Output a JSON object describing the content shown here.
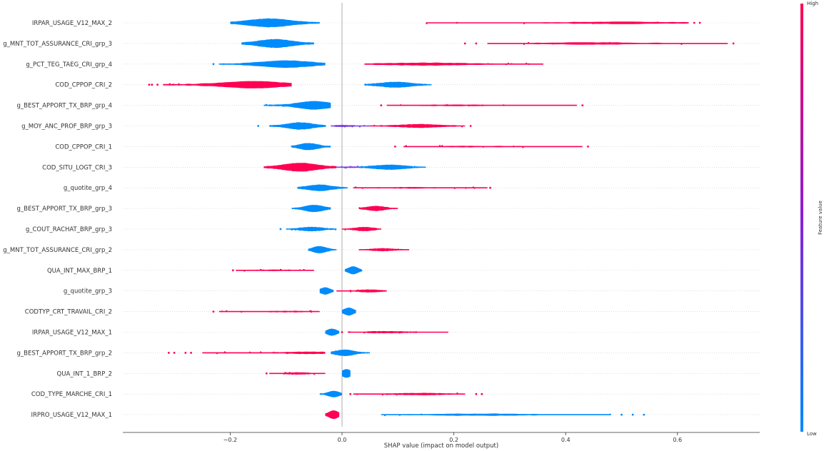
{
  "chart_data": {
    "type": "scatter",
    "subtype": "shap-beeswarm",
    "xlabel": "SHAP value (impact on model output)",
    "xlim": [
      -0.4,
      0.75
    ],
    "x_ticks": [
      -0.2,
      0.0,
      0.2,
      0.4,
      0.6
    ],
    "x_tick_labels": [
      "−0.2",
      "0.0",
      "0.2",
      "0.4",
      "0.6"
    ],
    "colorbar": {
      "title": "Feature value",
      "high_label": "High",
      "low_label": "Low",
      "high_color": "#ff0052",
      "low_color": "#008bfb"
    },
    "zero_line": true,
    "features": [
      {
        "name": "IRPAR_USAGE_V12_MAX_2",
        "segments": [
          {
            "color": "low",
            "range": [
              -0.2,
              -0.04
            ],
            "center": -0.13,
            "thickness": 12
          },
          {
            "color": "high",
            "range": [
              0.15,
              0.62
            ],
            "center": 0.5,
            "thickness": 3
          }
        ],
        "outliers": [
          {
            "x": 0.63,
            "color": "high"
          },
          {
            "x": 0.64,
            "color": "high"
          }
        ]
      },
      {
        "name": "g_MNT_TOT_ASSURANCE_CRI_grp_3",
        "segments": [
          {
            "color": "low",
            "range": [
              -0.18,
              -0.05
            ],
            "center": -0.12,
            "thickness": 12
          },
          {
            "color": "high",
            "range": [
              0.26,
              0.69
            ],
            "center": 0.45,
            "thickness": 3
          }
        ],
        "outliers": [
          {
            "x": 0.22,
            "color": "high"
          },
          {
            "x": 0.24,
            "color": "high"
          },
          {
            "x": 0.7,
            "color": "high"
          }
        ]
      },
      {
        "name": "g_PCT_TEG_TAEG_CRI_grp_4",
        "segments": [
          {
            "color": "low",
            "range": [
              -0.22,
              -0.03
            ],
            "center": -0.1,
            "thickness": 10
          },
          {
            "color": "high",
            "range": [
              0.04,
              0.36
            ],
            "center": 0.15,
            "thickness": 4
          }
        ],
        "outliers": [
          {
            "x": -0.23,
            "color": "low"
          }
        ]
      },
      {
        "name": "COD_CPPOP_CRI_2",
        "segments": [
          {
            "color": "high",
            "range": [
              -0.32,
              -0.09
            ],
            "center": -0.16,
            "thickness": 10
          },
          {
            "color": "low",
            "range": [
              0.04,
              0.16
            ],
            "center": 0.095,
            "thickness": 8
          }
        ],
        "outliers": [
          {
            "x": -0.345,
            "color": "high"
          },
          {
            "x": -0.34,
            "color": "high"
          },
          {
            "x": -0.33,
            "color": "high"
          }
        ]
      },
      {
        "name": "g_BEST_APPORT_TX_BRP_grp_4",
        "segments": [
          {
            "color": "low",
            "range": [
              -0.14,
              -0.02
            ],
            "center": -0.05,
            "thickness": 12
          },
          {
            "color": "high",
            "range": [
              0.08,
              0.42
            ],
            "center": 0.2,
            "thickness": 2
          }
        ],
        "outliers": [
          {
            "x": 0.07,
            "color": "high"
          },
          {
            "x": 0.43,
            "color": "high"
          }
        ]
      },
      {
        "name": "g_MOY_ANC_PROF_BRP_grp_3",
        "segments": [
          {
            "color": "low",
            "range": [
              -0.13,
              -0.03
            ],
            "center": -0.075,
            "thickness": 10
          },
          {
            "color": "mid",
            "range": [
              -0.02,
              0.05
            ],
            "center": 0.0,
            "thickness": 3
          },
          {
            "color": "high",
            "range": [
              0.05,
              0.22
            ],
            "center": 0.14,
            "thickness": 5
          }
        ],
        "outliers": [
          {
            "x": -0.15,
            "color": "low"
          },
          {
            "x": 0.23,
            "color": "high"
          }
        ]
      },
      {
        "name": "COD_CPPOP_CRI_1",
        "segments": [
          {
            "color": "low",
            "range": [
              -0.09,
              -0.02
            ],
            "center": -0.06,
            "thickness": 10
          },
          {
            "color": "high",
            "range": [
              0.11,
              0.43
            ],
            "center": 0.25,
            "thickness": 2
          }
        ],
        "outliers": [
          {
            "x": 0.095,
            "color": "high"
          },
          {
            "x": 0.44,
            "color": "high"
          }
        ]
      },
      {
        "name": "COD_SITU_LOGT_CRI_3",
        "segments": [
          {
            "color": "high",
            "range": [
              -0.14,
              -0.01
            ],
            "center": -0.075,
            "thickness": 12
          },
          {
            "color": "mid",
            "range": [
              -0.01,
              0.05
            ],
            "center": 0.02,
            "thickness": 2
          },
          {
            "color": "low",
            "range": [
              0.03,
              0.15
            ],
            "center": 0.085,
            "thickness": 7
          }
        ],
        "outliers": []
      },
      {
        "name": "g_quotite_grp_4",
        "segments": [
          {
            "color": "low",
            "range": [
              -0.08,
              0.01
            ],
            "center": -0.04,
            "thickness": 9
          },
          {
            "color": "high",
            "range": [
              0.02,
              0.26
            ],
            "center": 0.12,
            "thickness": 2
          }
        ],
        "outliers": [
          {
            "x": 0.265,
            "color": "high"
          }
        ]
      },
      {
        "name": "g_BEST_APPORT_TX_BRP_grp_3",
        "segments": [
          {
            "color": "low",
            "range": [
              -0.09,
              -0.02
            ],
            "center": -0.05,
            "thickness": 10
          },
          {
            "color": "high",
            "range": [
              0.03,
              0.1
            ],
            "center": 0.06,
            "thickness": 7
          }
        ],
        "outliers": []
      },
      {
        "name": "g_COUT_RACHAT_BRP_grp_3",
        "segments": [
          {
            "color": "low",
            "range": [
              -0.1,
              -0.01
            ],
            "center": -0.055,
            "thickness": 6
          },
          {
            "color": "high",
            "range": [
              0.0,
              0.07
            ],
            "center": 0.04,
            "thickness": 6
          }
        ],
        "outliers": [
          {
            "x": -0.11,
            "color": "low"
          }
        ]
      },
      {
        "name": "g_MNT_TOT_ASSURANCE_CRI_grp_2",
        "segments": [
          {
            "color": "low",
            "range": [
              -0.06,
              -0.01
            ],
            "center": -0.04,
            "thickness": 10
          },
          {
            "color": "high",
            "range": [
              0.03,
              0.12
            ],
            "center": 0.075,
            "thickness": 4
          }
        ],
        "outliers": []
      },
      {
        "name": "QUA_INT_MAX_BRP_1",
        "segments": [
          {
            "color": "high",
            "range": [
              -0.19,
              -0.05
            ],
            "center": -0.12,
            "thickness": 2
          },
          {
            "color": "low",
            "range": [
              0.005,
              0.035
            ],
            "center": 0.02,
            "thickness": 11
          }
        ],
        "outliers": [
          {
            "x": -0.195,
            "color": "high"
          }
        ]
      },
      {
        "name": "g_quotite_grp_3",
        "segments": [
          {
            "color": "low",
            "range": [
              -0.04,
              -0.015
            ],
            "center": -0.03,
            "thickness": 10
          },
          {
            "color": "high",
            "range": [
              -0.01,
              0.08
            ],
            "center": 0.05,
            "thickness": 4
          }
        ],
        "outliers": []
      },
      {
        "name": "CODTYP_CRT_TRAVAIL_CRI_2",
        "segments": [
          {
            "color": "high",
            "range": [
              -0.22,
              -0.04
            ],
            "center": -0.1,
            "thickness": 2
          },
          {
            "color": "low",
            "range": [
              0.0,
              0.025
            ],
            "center": 0.012,
            "thickness": 11
          }
        ],
        "outliers": [
          {
            "x": -0.23,
            "color": "high"
          }
        ]
      },
      {
        "name": "IRPAR_USAGE_V12_MAX_1",
        "segments": [
          {
            "color": "low",
            "range": [
              -0.03,
              -0.005
            ],
            "center": -0.018,
            "thickness": 10
          },
          {
            "color": "high",
            "range": [
              0.01,
              0.19
            ],
            "center": 0.08,
            "thickness": 3
          }
        ],
        "outliers": [
          {
            "x": 0.0,
            "color": "high"
          }
        ]
      },
      {
        "name": "g_BEST_APPORT_TX_BRP_grp_2",
        "segments": [
          {
            "color": "high",
            "range": [
              -0.25,
              -0.03
            ],
            "center": -0.06,
            "thickness": 3
          },
          {
            "color": "low",
            "range": [
              -0.02,
              0.05
            ],
            "center": 0.005,
            "thickness": 9
          }
        ],
        "outliers": [
          {
            "x": -0.31,
            "color": "high"
          },
          {
            "x": -0.3,
            "color": "high"
          },
          {
            "x": -0.28,
            "color": "high"
          },
          {
            "x": -0.27,
            "color": "high"
          }
        ]
      },
      {
        "name": "QUA_INT_1_BRP_2",
        "segments": [
          {
            "color": "high",
            "range": [
              -0.13,
              -0.03
            ],
            "center": -0.08,
            "thickness": 3
          },
          {
            "color": "low",
            "range": [
              0.0,
              0.015
            ],
            "center": 0.008,
            "thickness": 12
          }
        ],
        "outliers": [
          {
            "x": -0.135,
            "color": "high"
          }
        ]
      },
      {
        "name": "COD_TYPE_MARCHE_CRI_1",
        "segments": [
          {
            "color": "low",
            "range": [
              -0.04,
              0.0
            ],
            "center": -0.015,
            "thickness": 9
          },
          {
            "color": "high",
            "range": [
              0.02,
              0.22
            ],
            "center": 0.14,
            "thickness": 3
          }
        ],
        "outliers": [
          {
            "x": 0.015,
            "color": "high"
          },
          {
            "x": 0.24,
            "color": "high"
          },
          {
            "x": 0.25,
            "color": "high"
          }
        ]
      },
      {
        "name": "IRPRO_USAGE_V12_MAX_1",
        "segments": [
          {
            "color": "high",
            "range": [
              -0.03,
              -0.005
            ],
            "center": -0.015,
            "thickness": 12
          },
          {
            "color": "low",
            "range": [
              0.07,
              0.48
            ],
            "center": 0.25,
            "thickness": 3
          }
        ],
        "outliers": [
          {
            "x": 0.5,
            "color": "low"
          },
          {
            "x": 0.52,
            "color": "low"
          },
          {
            "x": 0.54,
            "color": "low"
          }
        ]
      }
    ]
  }
}
